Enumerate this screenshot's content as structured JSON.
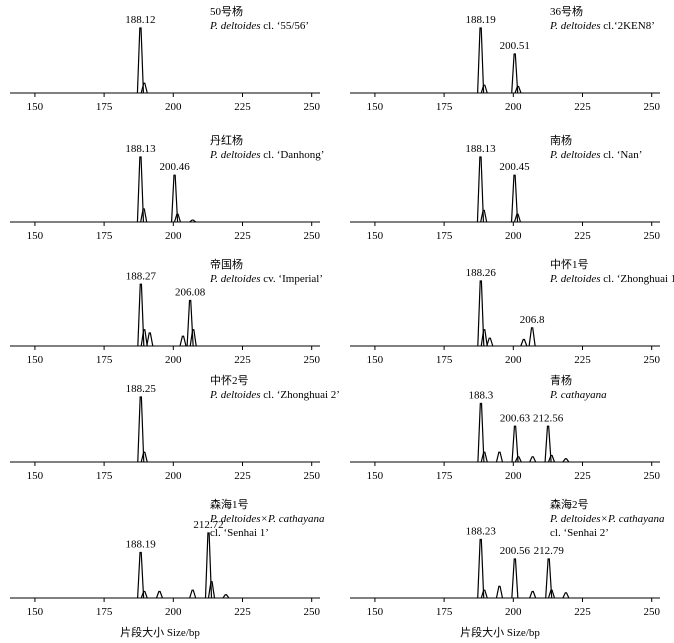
{
  "chart_data": [
    {
      "type": "peaks",
      "name": "50号杨",
      "species": "P. deltoides",
      "cultivar": "cl. ‘55/56’",
      "labeled_peaks": {
        "x": [
          188.12
        ],
        "heights": [
          100
        ]
      },
      "minor_peaks": {
        "x": [
          189.5
        ],
        "heights": [
          15
        ]
      },
      "xlim": [
        141,
        253
      ],
      "xticks": [
        150,
        175,
        200,
        225,
        250
      ]
    },
    {
      "type": "peaks",
      "name": "36号杨",
      "species": "P. deltoides",
      "cultivar": "cl.‘2KEN8’",
      "labeled_peaks": {
        "x": [
          188.19,
          200.51
        ],
        "heights": [
          100,
          60
        ]
      },
      "minor_peaks": {
        "x": [
          189.5,
          201.7
        ],
        "heights": [
          12,
          10
        ]
      },
      "xlim": [
        141,
        253
      ],
      "xticks": [
        150,
        175,
        200,
        225,
        250
      ]
    },
    {
      "type": "peaks",
      "name": "丹红杨",
      "species": "P. deltoides",
      "cultivar": "cl. ‘Danhong’",
      "labeled_peaks": {
        "x": [
          188.13,
          200.46
        ],
        "heights": [
          100,
          72
        ]
      },
      "minor_peaks": {
        "x": [
          189.3,
          201.5,
          207
        ],
        "heights": [
          20,
          12,
          3
        ]
      },
      "xlim": [
        141,
        253
      ],
      "xticks": [
        150,
        175,
        200,
        225,
        250
      ]
    },
    {
      "type": "peaks",
      "name": "南杨",
      "species": "P. deltoides",
      "cultivar": "cl. ‘Nan’",
      "labeled_peaks": {
        "x": [
          188.13,
          200.45
        ],
        "heights": [
          100,
          72
        ]
      },
      "minor_peaks": {
        "x": [
          189.3,
          201.5
        ],
        "heights": [
          18,
          12
        ]
      },
      "xlim": [
        141,
        253
      ],
      "xticks": [
        150,
        175,
        200,
        225,
        250
      ]
    },
    {
      "type": "peaks",
      "name": "帝国杨",
      "species": "P. deltoides",
      "cultivar": "cv. ‘Imperial’",
      "labeled_peaks": {
        "x": [
          188.27,
          206.08
        ],
        "heights": [
          95,
          70
        ]
      },
      "minor_peaks": {
        "x": [
          189.5,
          191.5,
          203.5,
          207.2
        ],
        "heights": [
          25,
          20,
          15,
          25
        ]
      },
      "xlim": [
        141,
        253
      ],
      "xticks": [
        150,
        175,
        200,
        225,
        250
      ]
    },
    {
      "type": "peaks",
      "name": "中怀1号",
      "species": "P. deltoides",
      "cultivar": "cl. ‘Zhonghuai 1’",
      "labeled_peaks": {
        "x": [
          188.26,
          206.8
        ],
        "heights": [
          100,
          28
        ]
      },
      "minor_peaks": {
        "x": [
          189.5,
          191.5,
          203.8
        ],
        "heights": [
          25,
          12,
          10
        ]
      },
      "xlim": [
        141,
        253
      ],
      "xticks": [
        150,
        175,
        200,
        225,
        250
      ]
    },
    {
      "type": "peaks",
      "name": "中怀2号",
      "species": "P. deltoides",
      "cultivar": "cl. ‘Zhonghuai 2’",
      "labeled_peaks": {
        "x": [
          188.25
        ],
        "heights": [
          100
        ]
      },
      "minor_peaks": {
        "x": [
          189.5
        ],
        "heights": [
          15
        ]
      },
      "xlim": [
        141,
        253
      ],
      "xticks": [
        150,
        175,
        200,
        225,
        250
      ]
    },
    {
      "type": "peaks",
      "name": "青杨",
      "species": "P. cathayana",
      "labeled_peaks": {
        "x": [
          188.3,
          200.63,
          212.56
        ],
        "heights": [
          90,
          55,
          55
        ]
      },
      "minor_peaks": {
        "x": [
          189.5,
          195,
          201.8,
          207,
          213.8,
          219
        ],
        "heights": [
          15,
          15,
          8,
          8,
          10,
          5
        ]
      },
      "xlim": [
        141,
        253
      ],
      "xticks": [
        150,
        175,
        200,
        225,
        250
      ]
    },
    {
      "type": "peaks",
      "name": "森海1号",
      "species": "P. deltoides×P. cathayana",
      "cultivar": "cl. ‘Senhai 1’",
      "labeled_peaks": {
        "x": [
          188.19,
          212.72
        ],
        "heights": [
          70,
          100
        ]
      },
      "minor_peaks": {
        "x": [
          189.5,
          195,
          207,
          213.8,
          219
        ],
        "heights": [
          10,
          10,
          12,
          25,
          5
        ]
      },
      "xlim": [
        141,
        253
      ],
      "xticks": [
        150,
        175,
        200,
        225,
        250
      ],
      "x_label": "片段大小 Size/bp"
    },
    {
      "type": "peaks",
      "name": "森海2号",
      "species": "P. deltoides×P. cathayana",
      "cultivar": "cl. ‘Senhai 2’",
      "labeled_peaks": {
        "x": [
          188.23,
          200.56,
          212.79
        ],
        "heights": [
          90,
          60,
          60
        ]
      },
      "minor_peaks": {
        "x": [
          189.5,
          195,
          207,
          213.8,
          219
        ],
        "heights": [
          12,
          18,
          10,
          12,
          8
        ]
      },
      "xlim": [
        141,
        253
      ],
      "xticks": [
        150,
        175,
        200,
        225,
        250
      ],
      "x_label": "片段大小 Size/bp"
    }
  ]
}
